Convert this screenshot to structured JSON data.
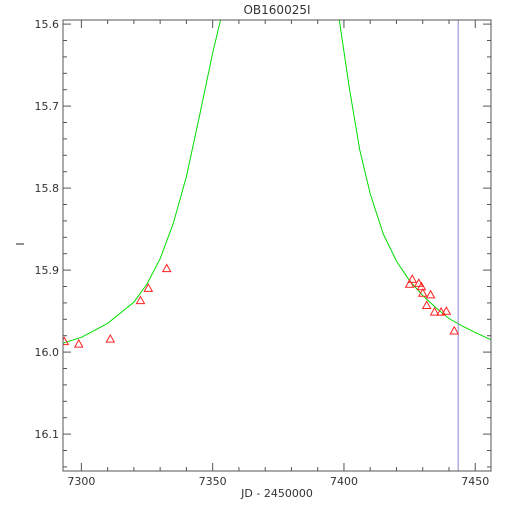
{
  "chart_data": {
    "type": "scatter",
    "title": "OB160025I",
    "xlabel": "JD - 2450000",
    "ylabel": "I",
    "xlim": [
      7293,
      7456
    ],
    "ylim": [
      16.145,
      15.595
    ],
    "y_inverted": true,
    "grid": false,
    "x_ticks": [
      7300,
      7350,
      7400,
      7450
    ],
    "x_tick_labels": [
      "7300",
      "7350",
      "7400",
      "7450"
    ],
    "y_ticks": [
      15.6,
      15.7,
      15.8,
      15.9,
      16.0,
      16.1
    ],
    "y_tick_labels": [
      "15.6",
      "15.7",
      "15.8",
      "15.9",
      "16.0",
      "16.1"
    ],
    "points": [
      {
        "x": 7293.5,
        "y": 15.987
      },
      {
        "x": 7299.0,
        "y": 15.99
      },
      {
        "x": 7311.0,
        "y": 15.984
      },
      {
        "x": 7322.5,
        "y": 15.937
      },
      {
        "x": 7325.5,
        "y": 15.922
      },
      {
        "x": 7332.5,
        "y": 15.898
      },
      {
        "x": 7425.0,
        "y": 15.917
      },
      {
        "x": 7426.0,
        "y": 15.911
      },
      {
        "x": 7428.5,
        "y": 15.916
      },
      {
        "x": 7429.5,
        "y": 15.92
      },
      {
        "x": 7430.0,
        "y": 15.928
      },
      {
        "x": 7431.5,
        "y": 15.943
      },
      {
        "x": 7433.0,
        "y": 15.93
      },
      {
        "x": 7434.5,
        "y": 15.951
      },
      {
        "x": 7437.0,
        "y": 15.951
      },
      {
        "x": 7439.0,
        "y": 15.95
      },
      {
        "x": 7442.0,
        "y": 15.974
      }
    ],
    "model_curve": {
      "x": [
        7293,
        7300,
        7310,
        7320,
        7325,
        7330,
        7335,
        7340,
        7345,
        7350,
        7353,
        7356,
        7395,
        7398,
        7402,
        7406,
        7410,
        7415,
        7420,
        7425,
        7430,
        7435,
        7440,
        7445,
        7450,
        7456
      ],
      "y": [
        15.989,
        15.982,
        15.965,
        15.939,
        15.917,
        15.886,
        15.843,
        15.786,
        15.712,
        15.635,
        15.595,
        15.555,
        15.555,
        15.59,
        15.677,
        15.753,
        15.807,
        15.856,
        15.889,
        15.913,
        15.931,
        15.946,
        15.959,
        15.968,
        15.976,
        15.985
      ],
      "color": "#00dd00"
    },
    "vertical_line": {
      "x": 7443.5,
      "color": "#8888cc"
    },
    "point_color": "#ff2222"
  }
}
